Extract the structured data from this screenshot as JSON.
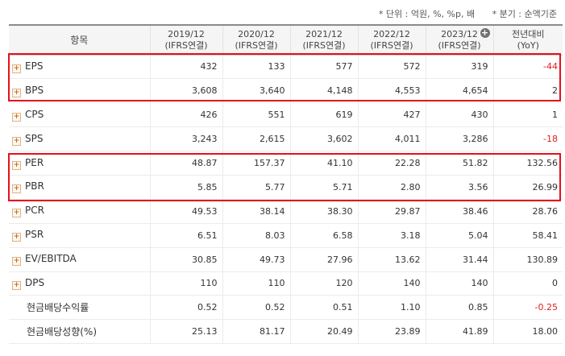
{
  "notes": {
    "unit": "* 단위 : 억원, %, %p, 배",
    "period": "* 분기 : 순액기준"
  },
  "header": {
    "item": "항목",
    "years": [
      "2019/12",
      "2020/12",
      "2021/12",
      "2022/12",
      "2023/12"
    ],
    "basis": "(IFRS연결)",
    "yoy_line1": "전년대비",
    "yoy_line2": "(YoY)",
    "add_icon": "plus-circle-icon"
  },
  "rows": [
    {
      "label": "EPS",
      "expandable": true,
      "values": [
        "432",
        "133",
        "577",
        "572",
        "319"
      ],
      "yoy": "-44",
      "yoy_negative": true
    },
    {
      "label": "BPS",
      "expandable": true,
      "values": [
        "3,608",
        "3,640",
        "4,148",
        "4,553",
        "4,654"
      ],
      "yoy": "2",
      "yoy_negative": false
    },
    {
      "label": "CPS",
      "expandable": true,
      "values": [
        "426",
        "551",
        "619",
        "427",
        "430"
      ],
      "yoy": "1",
      "yoy_negative": false
    },
    {
      "label": "SPS",
      "expandable": true,
      "values": [
        "3,243",
        "2,615",
        "3,602",
        "4,011",
        "3,286"
      ],
      "yoy": "-18",
      "yoy_negative": true
    },
    {
      "label": "PER",
      "expandable": true,
      "values": [
        "48.87",
        "157.37",
        "41.10",
        "22.28",
        "51.82"
      ],
      "yoy": "132.56",
      "yoy_negative": false
    },
    {
      "label": "PBR",
      "expandable": true,
      "values": [
        "5.85",
        "5.77",
        "5.71",
        "2.80",
        "3.56"
      ],
      "yoy": "26.99",
      "yoy_negative": false
    },
    {
      "label": "PCR",
      "expandable": true,
      "values": [
        "49.53",
        "38.14",
        "38.30",
        "29.87",
        "38.46"
      ],
      "yoy": "28.76",
      "yoy_negative": false
    },
    {
      "label": "PSR",
      "expandable": true,
      "values": [
        "6.51",
        "8.03",
        "6.58",
        "3.18",
        "5.04"
      ],
      "yoy": "58.41",
      "yoy_negative": false
    },
    {
      "label": "EV/EBITDA",
      "expandable": true,
      "values": [
        "30.85",
        "49.73",
        "27.96",
        "13.62",
        "31.44"
      ],
      "yoy": "130.89",
      "yoy_negative": false
    },
    {
      "label": "DPS",
      "expandable": true,
      "values": [
        "110",
        "110",
        "120",
        "140",
        "140"
      ],
      "yoy": "0",
      "yoy_negative": false
    },
    {
      "label": "현금배당수익률",
      "expandable": false,
      "values": [
        "0.52",
        "0.52",
        "0.51",
        "1.10",
        "0.85"
      ],
      "yoy": "-0.25",
      "yoy_negative": true
    },
    {
      "label": "현금배당성향(%)",
      "expandable": false,
      "values": [
        "25.13",
        "81.17",
        "20.49",
        "23.89",
        "41.89"
      ],
      "yoy": "18.00",
      "yoy_negative": false
    }
  ],
  "highlight_color": "#e6101a",
  "negative_color": "#e02020"
}
